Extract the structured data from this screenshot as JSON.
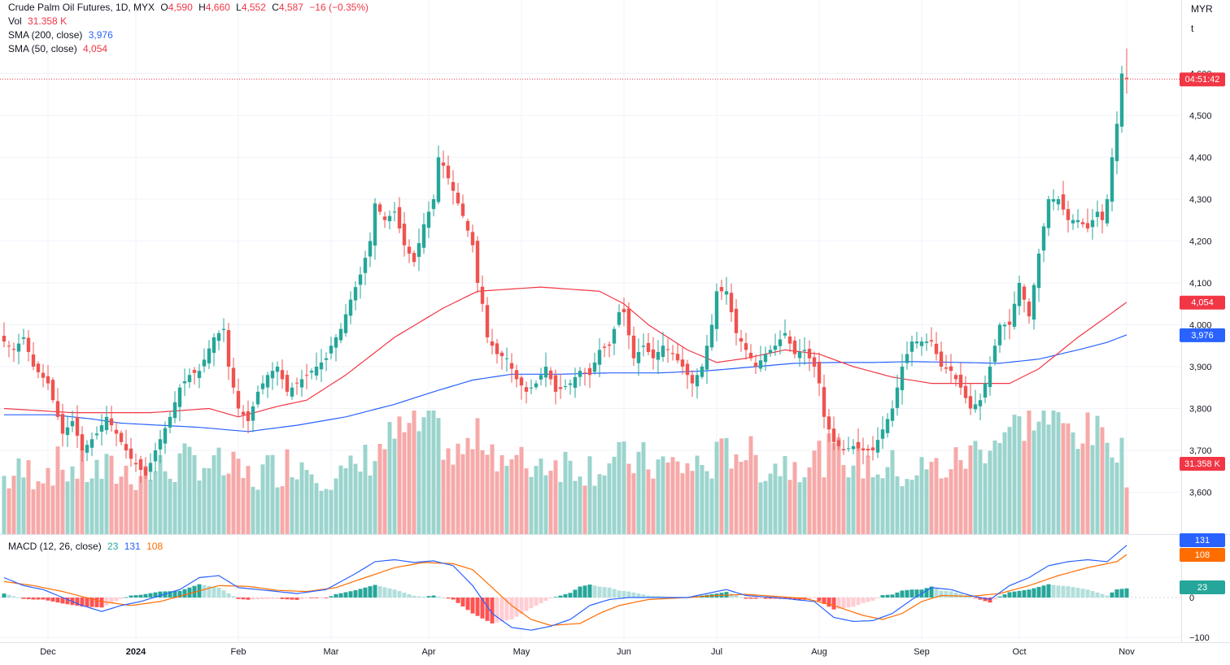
{
  "header": {
    "symbol_title": "Crude Palm Oil Futures, 1D, MYX",
    "o_label": "O",
    "o_value": "4,590",
    "h_label": "H",
    "h_value": "4,660",
    "l_label": "L",
    "l_value": "4,552",
    "c_label": "C",
    "c_value": "4,587",
    "change": "−16 (−0.35%)",
    "vol_label": "Vol",
    "vol_value": "31.358 K",
    "sma200_label": "SMA (200, close)",
    "sma200_value": "3,976",
    "sma50_label": "SMA (50, close)",
    "sma50_value": "4,054",
    "macd_label": "MACD (12, 26, close)",
    "macd_hist_value": "23",
    "macd_line_value": "131",
    "macd_signal_value": "108"
  },
  "scale": {
    "currency": "MYR",
    "mode": "t"
  },
  "badges": {
    "countdown": "04:51:42",
    "sma50": "4,054",
    "sma200": "3,976",
    "volume": "31.358 K",
    "macd_line": "131",
    "macd_signal": "108",
    "macd_hist": "23"
  },
  "colors": {
    "up": "#26a69a",
    "down": "#ef5350",
    "sma50": "#f23645",
    "sma200": "#2962ff",
    "macd": "#2962ff",
    "signal": "#ff6d00",
    "vol_up": "#9bd4cd",
    "vol_down": "#f6a9a8"
  },
  "chart_data": {
    "type": "candlestick",
    "price_axis": {
      "ticks": [
        3600,
        3700,
        3800,
        3900,
        4000,
        4100,
        4200,
        4300,
        4400,
        4500,
        4600
      ],
      "labels": [
        "3,600",
        "3,700",
        "3,800",
        "3,900",
        "4,000",
        "4,100",
        "4,200",
        "4,300",
        "4,400",
        "4,500",
        "4,600"
      ]
    },
    "macd_axis": {
      "ticks": [
        0,
        -100
      ],
      "labels": [
        "0",
        "−100"
      ]
    },
    "time_axis": [
      {
        "label": "Dec",
        "bar": 9,
        "bold": false
      },
      {
        "label": "2024",
        "bar": 27,
        "bold": true
      },
      {
        "label": "Feb",
        "bar": 48,
        "bold": false
      },
      {
        "label": "Mar",
        "bar": 67,
        "bold": false
      },
      {
        "label": "Apr",
        "bar": 87,
        "bold": false
      },
      {
        "label": "May",
        "bar": 106,
        "bold": false
      },
      {
        "label": "Jun",
        "bar": 127,
        "bold": false
      },
      {
        "label": "Jul",
        "bar": 146,
        "bold": false
      },
      {
        "label": "Aug",
        "bar": 167,
        "bold": false
      },
      {
        "label": "Sep",
        "bar": 188,
        "bold": false
      },
      {
        "label": "Oct",
        "bar": 208,
        "bold": false
      },
      {
        "label": "Nov",
        "bar": 230,
        "bold": false
      }
    ],
    "close_anchors": [
      [
        0,
        3960
      ],
      [
        2,
        3940
      ],
      [
        4,
        3970
      ],
      [
        6,
        3900
      ],
      [
        9,
        3860
      ],
      [
        12,
        3740
      ],
      [
        14,
        3770
      ],
      [
        16,
        3700
      ],
      [
        19,
        3740
      ],
      [
        21,
        3780
      ],
      [
        24,
        3720
      ],
      [
        26,
        3680
      ],
      [
        29,
        3640
      ],
      [
        31,
        3700
      ],
      [
        34,
        3780
      ],
      [
        36,
        3850
      ],
      [
        38,
        3880
      ],
      [
        40,
        3890
      ],
      [
        43,
        3970
      ],
      [
        45,
        3990
      ],
      [
        46,
        3900
      ],
      [
        48,
        3800
      ],
      [
        50,
        3770
      ],
      [
        52,
        3840
      ],
      [
        54,
        3880
      ],
      [
        56,
        3900
      ],
      [
        58,
        3840
      ],
      [
        60,
        3860
      ],
      [
        62,
        3880
      ],
      [
        64,
        3900
      ],
      [
        66,
        3920
      ],
      [
        67,
        3950
      ],
      [
        69,
        3990
      ],
      [
        71,
        4060
      ],
      [
        73,
        4120
      ],
      [
        75,
        4200
      ],
      [
        76,
        4290
      ],
      [
        78,
        4250
      ],
      [
        80,
        4270
      ],
      [
        82,
        4190
      ],
      [
        84,
        4150
      ],
      [
        86,
        4240
      ],
      [
        88,
        4300
      ],
      [
        89,
        4400
      ],
      [
        90,
        4380
      ],
      [
        92,
        4320
      ],
      [
        94,
        4260
      ],
      [
        96,
        4190
      ],
      [
        97,
        4100
      ],
      [
        98,
        4050
      ],
      [
        99,
        3970
      ],
      [
        101,
        3930
      ],
      [
        103,
        3920
      ],
      [
        105,
        3870
      ],
      [
        107,
        3840
      ],
      [
        109,
        3860
      ],
      [
        111,
        3900
      ],
      [
        113,
        3840
      ],
      [
        116,
        3860
      ],
      [
        118,
        3890
      ],
      [
        120,
        3880
      ],
      [
        122,
        3940
      ],
      [
        124,
        3950
      ],
      [
        126,
        4030
      ],
      [
        127,
        4030
      ],
      [
        129,
        3920
      ],
      [
        131,
        3950
      ],
      [
        133,
        3920
      ],
      [
        135,
        3950
      ],
      [
        137,
        3930
      ],
      [
        139,
        3900
      ],
      [
        141,
        3860
      ],
      [
        143,
        3900
      ],
      [
        145,
        4000
      ],
      [
        146,
        4080
      ],
      [
        148,
        4080
      ],
      [
        150,
        3980
      ],
      [
        152,
        3940
      ],
      [
        154,
        3900
      ],
      [
        156,
        3930
      ],
      [
        158,
        3950
      ],
      [
        160,
        3980
      ],
      [
        162,
        3930
      ],
      [
        164,
        3940
      ],
      [
        166,
        3900
      ],
      [
        167,
        3860
      ],
      [
        168,
        3780
      ],
      [
        170,
        3720
      ],
      [
        172,
        3700
      ],
      [
        174,
        3710
      ],
      [
        176,
        3700
      ],
      [
        178,
        3700
      ],
      [
        180,
        3750
      ],
      [
        182,
        3800
      ],
      [
        184,
        3900
      ],
      [
        186,
        3960
      ],
      [
        188,
        3960
      ],
      [
        190,
        3960
      ],
      [
        192,
        3900
      ],
      [
        194,
        3890
      ],
      [
        196,
        3850
      ],
      [
        198,
        3800
      ],
      [
        200,
        3820
      ],
      [
        202,
        3900
      ],
      [
        204,
        4000
      ],
      [
        206,
        4000
      ],
      [
        208,
        4100
      ],
      [
        210,
        4020
      ],
      [
        212,
        4170
      ],
      [
        214,
        4300
      ],
      [
        216,
        4300
      ],
      [
        218,
        4250
      ],
      [
        220,
        4250
      ],
      [
        222,
        4230
      ],
      [
        224,
        4270
      ],
      [
        225,
        4250
      ],
      [
        226,
        4300
      ],
      [
        227,
        4400
      ],
      [
        228,
        4480
      ],
      [
        229,
        4600
      ],
      [
        230,
        4587
      ]
    ],
    "sma50_anchors": [
      [
        0,
        3800
      ],
      [
        14,
        3790
      ],
      [
        30,
        3790
      ],
      [
        42,
        3800
      ],
      [
        48,
        3780
      ],
      [
        56,
        3805
      ],
      [
        62,
        3820
      ],
      [
        70,
        3880
      ],
      [
        80,
        3970
      ],
      [
        90,
        4040
      ],
      [
        97,
        4080
      ],
      [
        110,
        4090
      ],
      [
        122,
        4080
      ],
      [
        127,
        4050
      ],
      [
        132,
        4000
      ],
      [
        140,
        3940
      ],
      [
        146,
        3910
      ],
      [
        152,
        3920
      ],
      [
        160,
        3940
      ],
      [
        167,
        3930
      ],
      [
        174,
        3900
      ],
      [
        182,
        3875
      ],
      [
        190,
        3860
      ],
      [
        198,
        3860
      ],
      [
        206,
        3860
      ],
      [
        212,
        3895
      ],
      [
        220,
        3970
      ],
      [
        226,
        4020
      ],
      [
        230,
        4054
      ]
    ],
    "sma200_anchors": [
      [
        0,
        3785
      ],
      [
        10,
        3785
      ],
      [
        18,
        3775
      ],
      [
        24,
        3765
      ],
      [
        32,
        3760
      ],
      [
        40,
        3755
      ],
      [
        50,
        3745
      ],
      [
        60,
        3760
      ],
      [
        70,
        3780
      ],
      [
        80,
        3810
      ],
      [
        88,
        3840
      ],
      [
        96,
        3868
      ],
      [
        104,
        3882
      ],
      [
        114,
        3882
      ],
      [
        124,
        3885
      ],
      [
        134,
        3885
      ],
      [
        144,
        3890
      ],
      [
        154,
        3900
      ],
      [
        162,
        3908
      ],
      [
        170,
        3910
      ],
      [
        178,
        3910
      ],
      [
        186,
        3912
      ],
      [
        196,
        3910
      ],
      [
        204,
        3908
      ],
      [
        212,
        3918
      ],
      [
        220,
        3940
      ],
      [
        226,
        3958
      ],
      [
        230,
        3976
      ]
    ],
    "macd_anchors": [
      [
        0,
        50
      ],
      [
        4,
        30
      ],
      [
        8,
        20
      ],
      [
        12,
        0
      ],
      [
        16,
        -20
      ],
      [
        20,
        -35
      ],
      [
        24,
        -20
      ],
      [
        28,
        -10
      ],
      [
        32,
        5
      ],
      [
        36,
        20
      ],
      [
        40,
        50
      ],
      [
        44,
        55
      ],
      [
        48,
        25
      ],
      [
        52,
        20
      ],
      [
        56,
        15
      ],
      [
        60,
        10
      ],
      [
        66,
        20
      ],
      [
        72,
        60
      ],
      [
        76,
        90
      ],
      [
        80,
        95
      ],
      [
        84,
        88
      ],
      [
        88,
        92
      ],
      [
        92,
        80
      ],
      [
        96,
        30
      ],
      [
        100,
        -40
      ],
      [
        104,
        -75
      ],
      [
        108,
        -82
      ],
      [
        112,
        -72
      ],
      [
        116,
        -55
      ],
      [
        120,
        -20
      ],
      [
        124,
        -5
      ],
      [
        128,
        0
      ],
      [
        134,
        0
      ],
      [
        140,
        0
      ],
      [
        144,
        10
      ],
      [
        148,
        20
      ],
      [
        152,
        5
      ],
      [
        158,
        0
      ],
      [
        162,
        -5
      ],
      [
        166,
        -10
      ],
      [
        170,
        -50
      ],
      [
        174,
        -60
      ],
      [
        178,
        -58
      ],
      [
        182,
        -40
      ],
      [
        186,
        -5
      ],
      [
        190,
        25
      ],
      [
        194,
        20
      ],
      [
        198,
        5
      ],
      [
        202,
        -5
      ],
      [
        206,
        30
      ],
      [
        210,
        50
      ],
      [
        214,
        80
      ],
      [
        218,
        90
      ],
      [
        222,
        95
      ],
      [
        226,
        90
      ],
      [
        230,
        131
      ]
    ],
    "signal_anchors": [
      [
        0,
        40
      ],
      [
        6,
        30
      ],
      [
        12,
        15
      ],
      [
        20,
        -10
      ],
      [
        26,
        -20
      ],
      [
        32,
        -10
      ],
      [
        38,
        10
      ],
      [
        44,
        30
      ],
      [
        50,
        28
      ],
      [
        56,
        18
      ],
      [
        62,
        15
      ],
      [
        68,
        25
      ],
      [
        74,
        50
      ],
      [
        80,
        75
      ],
      [
        86,
        88
      ],
      [
        92,
        85
      ],
      [
        96,
        70
      ],
      [
        100,
        25
      ],
      [
        104,
        -20
      ],
      [
        108,
        -55
      ],
      [
        112,
        -70
      ],
      [
        118,
        -65
      ],
      [
        122,
        -40
      ],
      [
        126,
        -20
      ],
      [
        132,
        -5
      ],
      [
        140,
        0
      ],
      [
        146,
        5
      ],
      [
        152,
        8
      ],
      [
        158,
        3
      ],
      [
        164,
        -2
      ],
      [
        170,
        -20
      ],
      [
        176,
        -45
      ],
      [
        180,
        -55
      ],
      [
        184,
        -40
      ],
      [
        188,
        -10
      ],
      [
        192,
        5
      ],
      [
        198,
        3
      ],
      [
        204,
        10
      ],
      [
        210,
        30
      ],
      [
        216,
        55
      ],
      [
        222,
        75
      ],
      [
        228,
        90
      ],
      [
        230,
        108
      ]
    ],
    "volume_anchors": [
      [
        0,
        0.45
      ],
      [
        10,
        0.55
      ],
      [
        20,
        0.5
      ],
      [
        30,
        0.5
      ],
      [
        40,
        0.6
      ],
      [
        50,
        0.45
      ],
      [
        60,
        0.6
      ],
      [
        70,
        0.45
      ],
      [
        80,
        0.8
      ],
      [
        88,
        0.9
      ],
      [
        92,
        0.6
      ],
      [
        98,
        0.8
      ],
      [
        104,
        0.55
      ],
      [
        112,
        0.6
      ],
      [
        120,
        0.55
      ],
      [
        128,
        0.6
      ],
      [
        136,
        0.55
      ],
      [
        144,
        0.55
      ],
      [
        150,
        0.7
      ],
      [
        156,
        0.55
      ],
      [
        164,
        0.6
      ],
      [
        170,
        0.65
      ],
      [
        178,
        0.55
      ],
      [
        186,
        0.5
      ],
      [
        194,
        0.55
      ],
      [
        200,
        0.7
      ],
      [
        206,
        0.85
      ],
      [
        212,
        0.95
      ],
      [
        218,
        0.85
      ],
      [
        224,
        0.8
      ],
      [
        228,
        0.75
      ],
      [
        230,
        0.55
      ]
    ]
  }
}
